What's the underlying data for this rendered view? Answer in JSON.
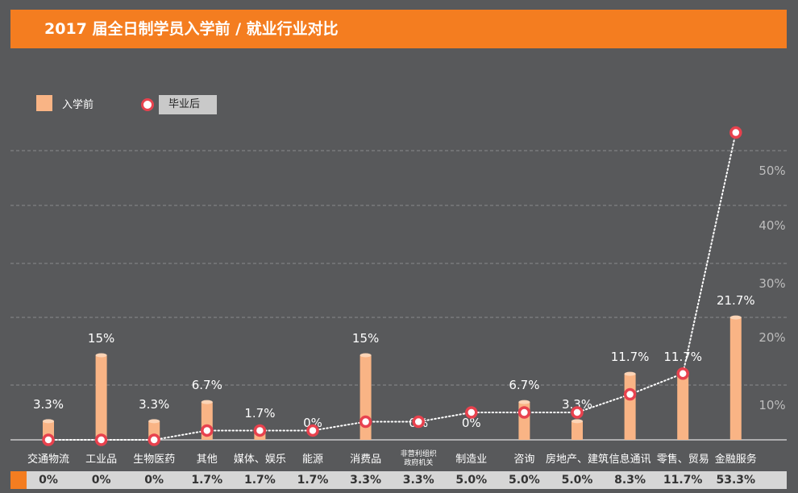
{
  "header": {
    "title": "2017 届全日制学员入学前 / 就业行业对比"
  },
  "legend": {
    "before_label": "入学前",
    "after_label": "毕业后"
  },
  "colors": {
    "accent": "#f47d20",
    "bar": "#f9b485",
    "dot": "#e8424e",
    "background": "#58595b"
  },
  "chart_data": {
    "type": "bar",
    "title": "2017 届全日制学员入学前 / 就业行业对比",
    "categories": [
      "交通物流",
      "工业品",
      "生物医药",
      "其他",
      "媒体、娱乐",
      "能源",
      "消费品",
      "非营利组织\n政府机关",
      "制造业",
      "咨询",
      "房地产、建筑",
      "信息通讯",
      "零售、贸易",
      "金融服务"
    ],
    "series": [
      {
        "name": "入学前",
        "kind": "bar",
        "values": [
          3.3,
          15,
          3.3,
          6.7,
          1.7,
          0,
          15,
          0,
          0,
          6.7,
          3.3,
          11.7,
          11.7,
          21.7
        ],
        "labels": [
          "3.3%",
          "15%",
          "3.3%",
          "6.7%",
          "1.7%",
          "0%",
          "15%",
          "0%",
          "0%",
          "6.7%",
          "3.3%",
          "11.7%",
          "11.7%",
          "21.7%"
        ]
      },
      {
        "name": "毕业后",
        "kind": "line",
        "values": [
          0,
          0,
          0,
          1.7,
          1.7,
          1.7,
          3.3,
          3.3,
          5.0,
          5.0,
          5.0,
          8.3,
          11.7,
          53.3
        ],
        "labels": [
          "0%",
          "0%",
          "0%",
          "1.7%",
          "1.7%",
          "1.7%",
          "3.3%",
          "3.3%",
          "5.0%",
          "5.0%",
          "5.0%",
          "8.3%",
          "11.7%",
          "53.3%"
        ]
      }
    ],
    "y_ticks": [
      10,
      20,
      30,
      40,
      50
    ],
    "y_tick_labels": [
      "10%",
      "20%",
      "30%",
      "40%",
      "50%"
    ],
    "ylim": [
      0,
      55
    ],
    "grid": true
  }
}
